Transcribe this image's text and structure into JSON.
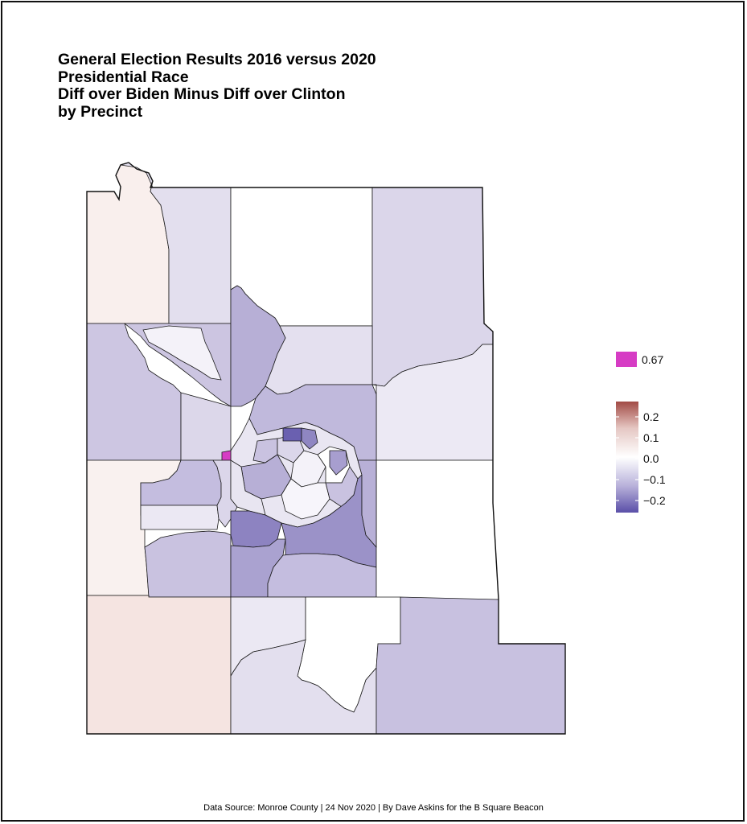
{
  "title_lines": [
    "General Election Results 2016 versus 2020",
    "Presidential Race",
    "Diff over Biden Minus Diff over Clinton",
    "by Precinct"
  ],
  "footer": "Data Source: Monroe County | 24 Nov 2020 | By Dave Askins for the B Square Beacon",
  "legend": {
    "outlier": {
      "label": "0.67",
      "color": "#d63cc4"
    },
    "scale": {
      "ticks": [
        "0.2",
        "0.1",
        "0.0",
        "−0.1",
        "−0.2"
      ],
      "high_color": "#a24a44",
      "mid_color": "#ffffff",
      "low_color": "#5a4fa8"
    }
  },
  "colors": {
    "border": "#111111",
    "very_light": "#f0eef6",
    "light": "#dcd7ea",
    "medium": "#c3bcdc",
    "medium_dark": "#aaa2d0",
    "dark": "#8f86c2",
    "darkest": "#6a60b0",
    "pinkish": "#f8ecea",
    "pinkish2": "#f4e2de",
    "outlier": "#d63cc4"
  }
}
